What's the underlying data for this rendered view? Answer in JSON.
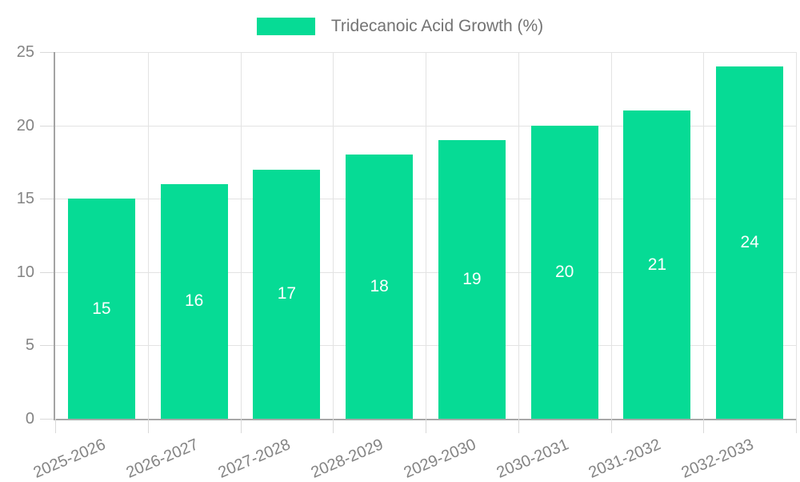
{
  "legend": {
    "label": "Tridecanoic Acid Growth (%)"
  },
  "colors": {
    "bar": "#06db95",
    "grid": "#e3e3e3",
    "axis": "#a3a3a3",
    "tick_label": "#848484",
    "value_label": "#ffffff"
  },
  "chart_data": {
    "type": "bar",
    "title": "",
    "xlabel": "",
    "ylabel": "",
    "categories": [
      "2025-2026",
      "2026-2027",
      "2027-2028",
      "2028-2029",
      "2029-2030",
      "2030-2031",
      "2031-2032",
      "2032-2033"
    ],
    "series": [
      {
        "name": "Tridecanoic Acid Growth (%)",
        "values": [
          15,
          16,
          17,
          18,
          19,
          20,
          21,
          24
        ]
      }
    ],
    "value_labels": [
      "15",
      "16",
      "17",
      "18",
      "19",
      "20",
      "21",
      "24"
    ],
    "yticks": [
      0,
      5,
      10,
      15,
      20,
      25
    ],
    "ylim": [
      0,
      25
    ],
    "grid": "on",
    "legend_position": "top-center",
    "bar_color": "#06db95",
    "x_tick_rotation_deg": 23
  }
}
